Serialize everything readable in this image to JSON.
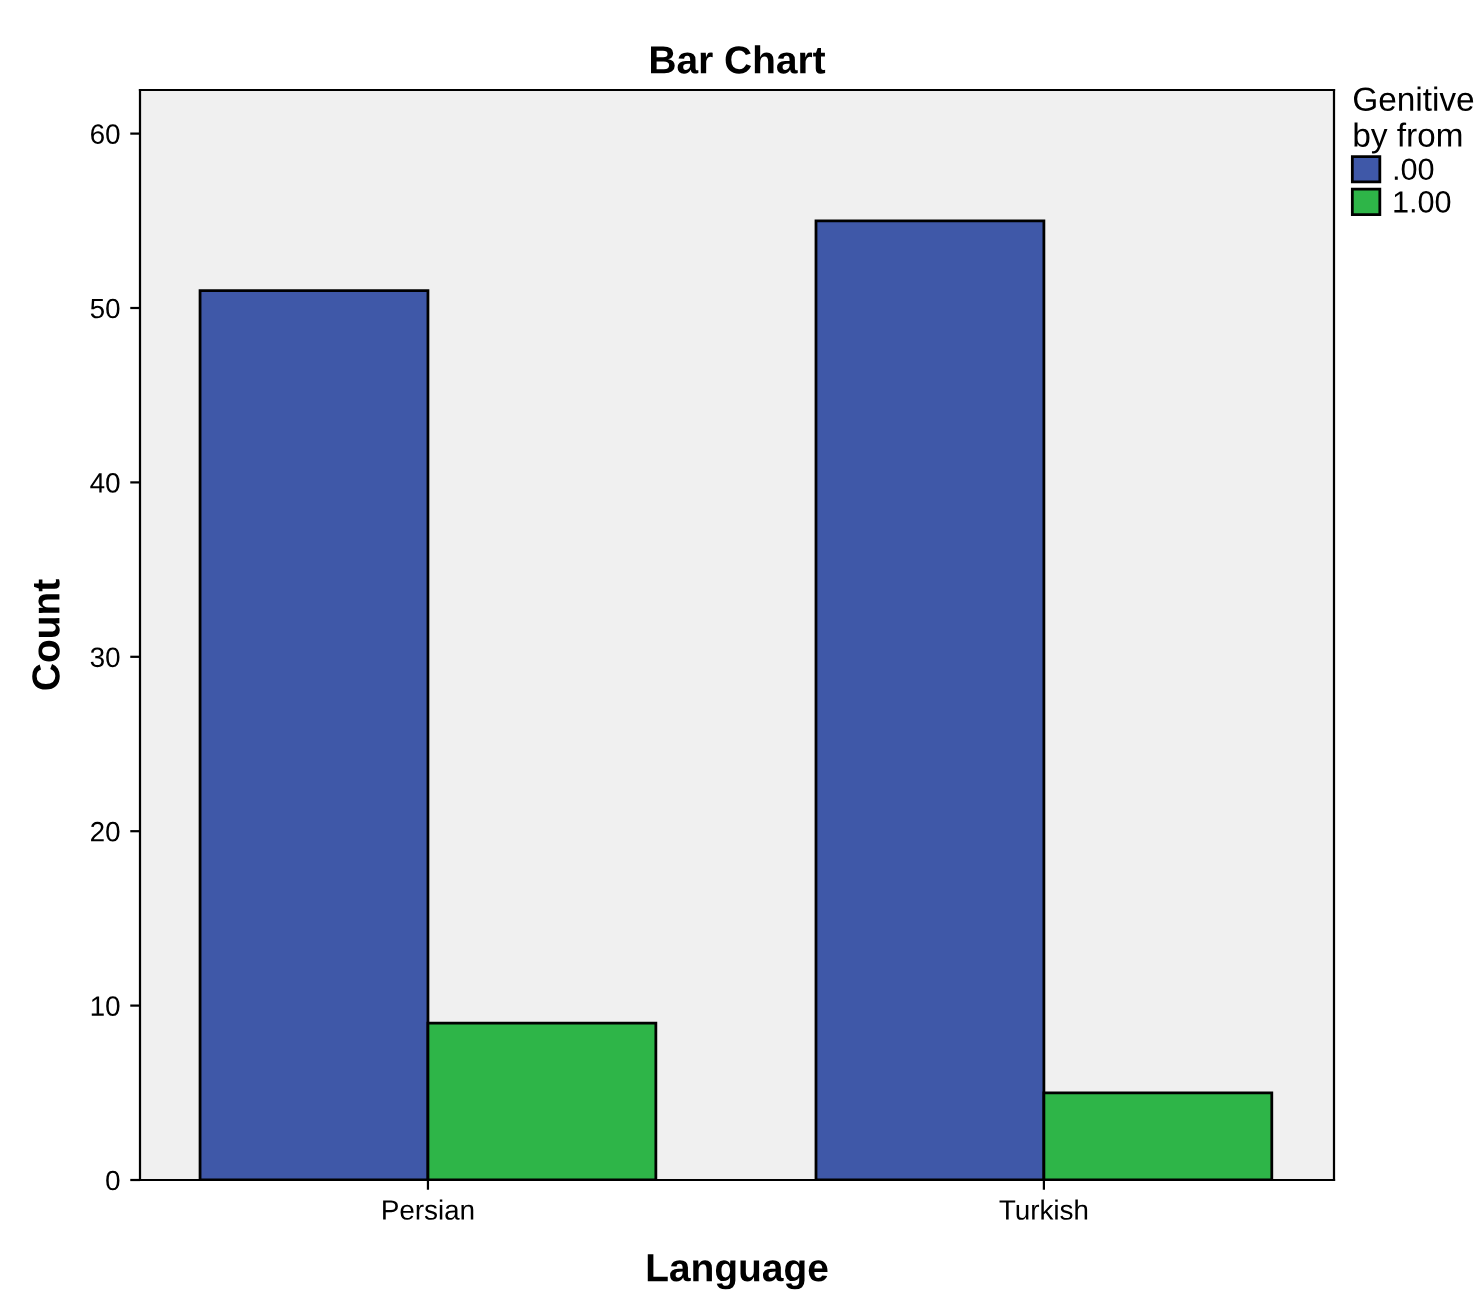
{
  "chart_data": {
    "type": "bar",
    "title": "Bar Chart",
    "xlabel": "Language",
    "ylabel": "Count",
    "legend_title": "Genitive\nby from",
    "categories": [
      "Persian",
      "Turkish"
    ],
    "series": [
      {
        "name": ".00",
        "color": "#3f58a8",
        "values": [
          51,
          55
        ]
      },
      {
        "name": "1.00",
        "color": "#2eb548",
        "values": [
          9,
          5
        ]
      }
    ],
    "ylim": [
      0,
      62.5
    ],
    "yticks": [
      0,
      10,
      20,
      30,
      40,
      50,
      60
    ],
    "grid": false,
    "legend": "top right"
  }
}
